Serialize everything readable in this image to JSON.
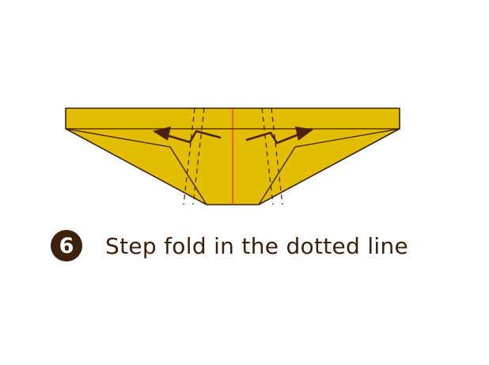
{
  "instruction": {
    "step_number": "6",
    "text": "Step fold in the dotted line"
  },
  "colors": {
    "paper_fill": "#e2bd00",
    "outline": "#3d200d",
    "center_crease": "#e0301e",
    "arrow": "#4a230c",
    "badge_bg": "#3d200d",
    "badge_text": "#ffffff",
    "text": "#3d200d"
  },
  "icons": {
    "left_arrow": "zigzag-arrow-left-icon",
    "right_arrow": "zigzag-arrow-right-icon"
  }
}
